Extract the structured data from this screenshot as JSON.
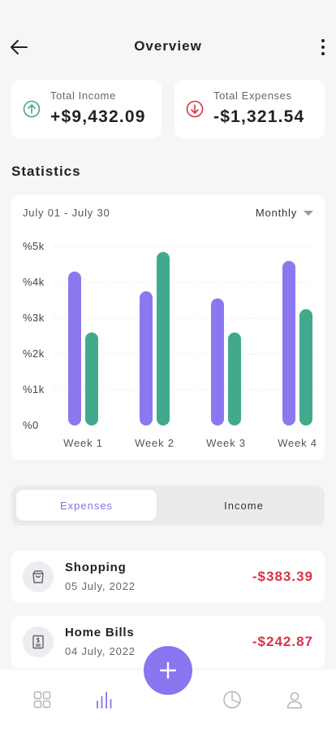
{
  "header": {
    "title": "Overview"
  },
  "summary": {
    "income": {
      "label": "Total Income",
      "value": "+$9,432.09"
    },
    "expenses": {
      "label": "Total Expenses",
      "value": "-$1,321.54"
    }
  },
  "statistics": {
    "title": "Statistics",
    "date_range": "July 01 - July 30",
    "period": "Monthly"
  },
  "chart_data": {
    "type": "bar",
    "categories": [
      "Week 1",
      "Week 2",
      "Week 3",
      "Week 4"
    ],
    "y_ticks": [
      "%0",
      "%1k",
      "%2k",
      "%3k",
      "%4k",
      "%5k"
    ],
    "ylim": [
      0,
      5000
    ],
    "grid": true,
    "series": [
      {
        "values": [
          4300,
          3750,
          3550,
          4600
        ],
        "color": "#8c78ee"
      },
      {
        "values": [
          2600,
          4850,
          2600,
          3250
        ],
        "color": "#42a98d"
      }
    ]
  },
  "tabs": {
    "expenses": "Expenses",
    "income": "Income"
  },
  "transactions": [
    {
      "name": "Shopping",
      "date": "05 July, 2022",
      "amount": "-$383.39",
      "icon": "shopping-bag-icon"
    },
    {
      "name": "Home Bills",
      "date": "04 July, 2022",
      "amount": "-$242.87",
      "icon": "receipt-icon"
    }
  ],
  "colors": {
    "accent": "#8a74f0",
    "income_green": "#42a98d",
    "expense_red": "#d93443"
  },
  "nav": [
    "grid-icon",
    "stats-icon",
    "add-icon",
    "pie-chart-icon",
    "user-icon"
  ]
}
